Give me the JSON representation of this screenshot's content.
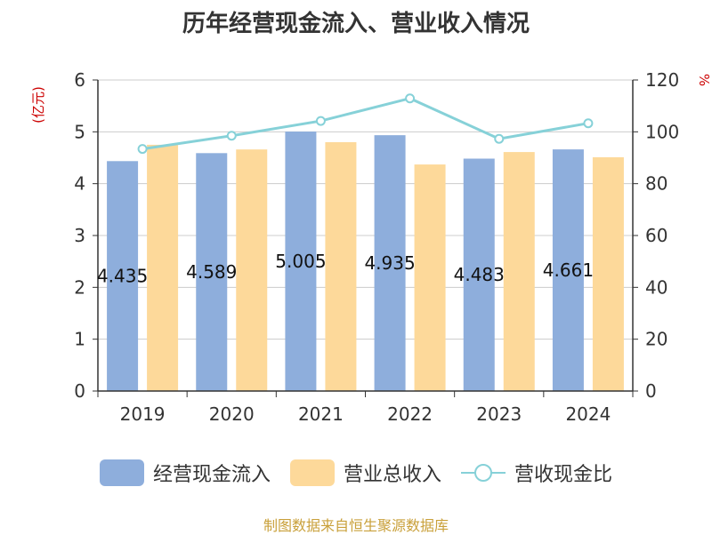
{
  "chart_data": {
    "type": "bar",
    "title": "历年经营现金流入、营业收入情况",
    "categories": [
      "2019",
      "2020",
      "2021",
      "2022",
      "2023",
      "2024"
    ],
    "series": [
      {
        "name": "经营现金流入",
        "type": "bar",
        "axis": "left",
        "color": "#8eaedc",
        "values": [
          4.435,
          4.589,
          5.005,
          4.935,
          4.483,
          4.661
        ],
        "labels": [
          "4.435",
          "4.589",
          "5.005",
          "4.935",
          "4.483",
          "4.661"
        ]
      },
      {
        "name": "营业总收入",
        "type": "bar",
        "axis": "left",
        "color": "#fdd99a",
        "values": [
          4.75,
          4.66,
          4.8,
          4.37,
          4.61,
          4.51
        ]
      },
      {
        "name": "营收现金比",
        "type": "line",
        "axis": "right",
        "color": "#86d1d8",
        "values": [
          93.4,
          98.5,
          104.2,
          112.9,
          97.3,
          103.3
        ]
      }
    ],
    "y_left": {
      "unit": "(亿元)",
      "min": 0,
      "max": 6,
      "ticks": [
        "0",
        "1",
        "2",
        "3",
        "4",
        "5",
        "6"
      ]
    },
    "y_right": {
      "unit": "%",
      "min": 0,
      "max": 120,
      "ticks": [
        "0",
        "20",
        "40",
        "60",
        "80",
        "100",
        "120"
      ]
    },
    "grid": true,
    "legend_position": "bottom",
    "source": "制图数据来自恒生聚源数据库"
  }
}
